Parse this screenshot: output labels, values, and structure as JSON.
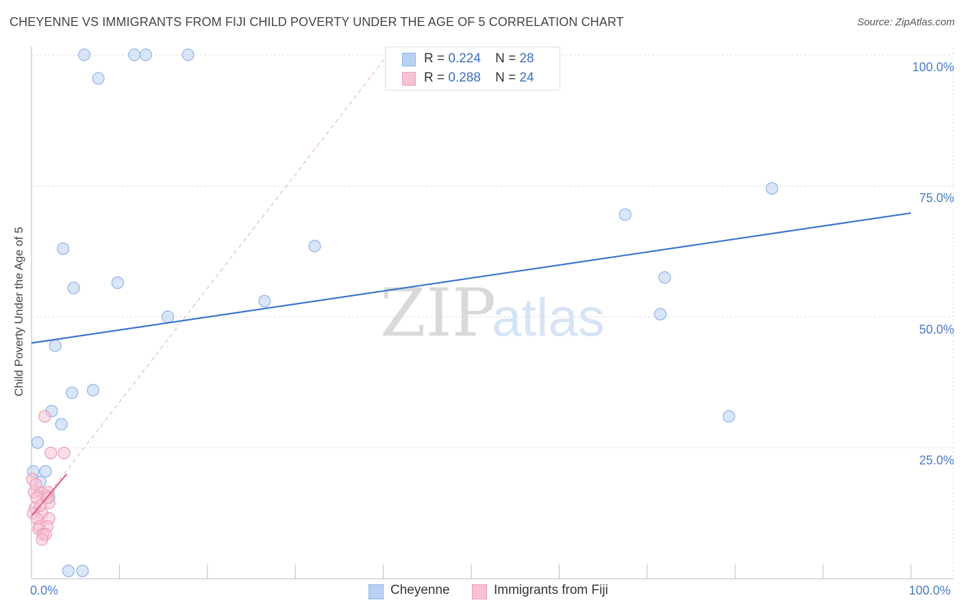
{
  "title": "CHEYENNE VS IMMIGRANTS FROM FIJI CHILD POVERTY UNDER THE AGE OF 5 CORRELATION CHART",
  "source": "Source: ZipAtlas.com",
  "watermark": {
    "zip": "ZIP",
    "atlas": "atlas"
  },
  "legend_top": [
    {
      "r_label": "R =",
      "r_value": "0.224",
      "n_label": "N =",
      "n_value": "28"
    },
    {
      "r_label": "R =",
      "r_value": "0.288",
      "n_label": "N =",
      "n_value": "24"
    }
  ],
  "legend_bottom": [
    "Cheyenne",
    "Immigrants from Fiji"
  ],
  "colors": {
    "cheyenne_fill": "#b8d1f3",
    "cheyenne_stroke": "#8fb2e6",
    "cheyenne_line": "#3a74cc",
    "fiji_fill": "#f7c3d2",
    "fiji_stroke": "#ee9ab4",
    "fiji_line": "#e0608a",
    "grid": "#dddddd",
    "tick_text": "#4a7cc9"
  },
  "chart_data": {
    "type": "scatter",
    "title": "CHEYENNE VS IMMIGRANTS FROM FIJI CHILD POVERTY UNDER THE AGE OF 5 CORRELATION CHART",
    "xlabel": "",
    "ylabel": "Child Poverty Under the Age of 5",
    "xlim": [
      0,
      100
    ],
    "ylim": [
      0,
      100
    ],
    "x_tick_labels": [
      {
        "value": 0,
        "label": "0.0%"
      },
      {
        "value": 100,
        "label": "100.0%"
      }
    ],
    "y_tick_labels": [
      {
        "value": 100,
        "label": "100.0%"
      },
      {
        "value": 75,
        "label": "75.0%"
      },
      {
        "value": 50,
        "label": "50.0%"
      },
      {
        "value": 25,
        "label": "25.0%"
      }
    ],
    "grid": true,
    "series": [
      {
        "name": "Cheyenne",
        "points": [
          [
            6,
            100
          ],
          [
            11.7,
            100
          ],
          [
            13,
            100
          ],
          [
            17.8,
            100
          ],
          [
            7.6,
            95.5
          ],
          [
            3.6,
            63
          ],
          [
            9.8,
            56.5
          ],
          [
            4.8,
            55.5
          ],
          [
            15.5,
            50
          ],
          [
            26.5,
            53
          ],
          [
            32.2,
            63.5
          ],
          [
            2.7,
            44.5
          ],
          [
            4.6,
            35.5
          ],
          [
            7,
            36
          ],
          [
            2.3,
            32
          ],
          [
            3.4,
            29.5
          ],
          [
            0.7,
            26
          ],
          [
            0.2,
            20.5
          ],
          [
            1.6,
            20.5
          ],
          [
            1,
            18.5
          ],
          [
            2,
            15.5
          ],
          [
            4.2,
            1.5
          ],
          [
            5.8,
            1.5
          ],
          [
            67.5,
            69.5
          ],
          [
            84.2,
            74.5
          ],
          [
            72,
            57.5
          ],
          [
            71.5,
            50.5
          ],
          [
            79.3,
            31
          ]
        ],
        "trend": {
          "x": [
            0,
            100
          ],
          "y": [
            45,
            69.8
          ]
        }
      },
      {
        "name": "Immigrants from Fiji",
        "points": [
          [
            1.5,
            31
          ],
          [
            2.2,
            24
          ],
          [
            3.7,
            24
          ],
          [
            0.1,
            19
          ],
          [
            0.3,
            16.5
          ],
          [
            1,
            16.5
          ],
          [
            1.6,
            16
          ],
          [
            0.6,
            15.5
          ],
          [
            1.9,
            16.5
          ],
          [
            2,
            14.5
          ],
          [
            0.4,
            13.5
          ],
          [
            1.2,
            12.5
          ],
          [
            0.2,
            12.5
          ],
          [
            0.6,
            11.5
          ],
          [
            2,
            11.5
          ],
          [
            0.9,
            10
          ],
          [
            1.8,
            10
          ],
          [
            0.8,
            9.5
          ],
          [
            1.3,
            8.5
          ],
          [
            1.6,
            8.5
          ],
          [
            1.2,
            7.5
          ],
          [
            1,
            14
          ],
          [
            0.5,
            18
          ],
          [
            1.8,
            15.5
          ]
        ],
        "trend": {
          "x": [
            0,
            4
          ],
          "y": [
            12,
            20
          ]
        },
        "trend_extended": {
          "x": [
            0,
            40.5
          ],
          "y": [
            12,
            100
          ]
        }
      }
    ]
  }
}
